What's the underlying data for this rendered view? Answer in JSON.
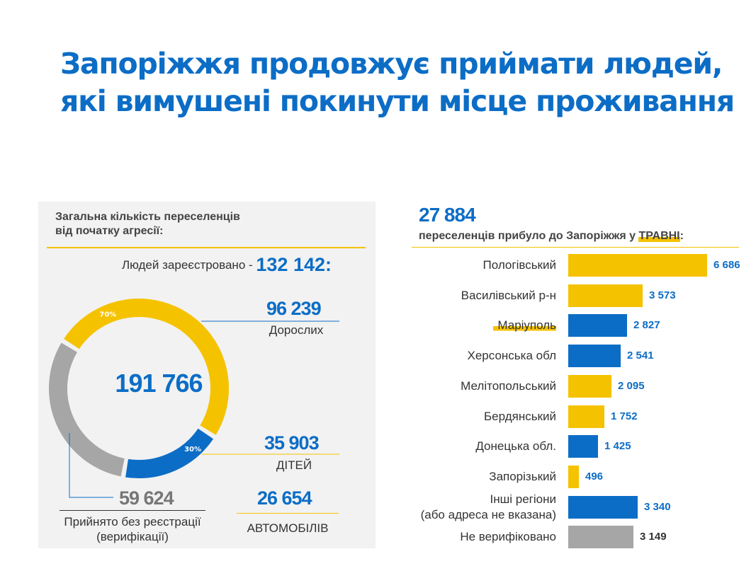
{
  "title": {
    "line1": "Запоріжжя продовжує приймати людей,",
    "line2": "які вимушені покинути місце проживання"
  },
  "left_panel": {
    "heading_line1": "Загальна кількість переселенців",
    "heading_line2": "від початку агресії:",
    "registered_label": "Людей зареєстровано - ",
    "registered_value": "132 142",
    "registered_suffix": ":",
    "total": "191 766",
    "adults_value": "96 239",
    "adults_label": "Дорослих",
    "children_value": "35 903",
    "children_label": "ДІТЕЙ",
    "unregistered_value": "59 624",
    "unregistered_label_line1": "Прийнято без реєстрації",
    "unregistered_label_line2": "(верифікації)",
    "cars_value": "26 654",
    "cars_label": "АВТОМОБІЛІВ",
    "colors": {
      "yellow": "#f5c200",
      "blue": "#0c6dc6",
      "grey": "#a6a6a6"
    }
  },
  "right_panel": {
    "total": "27 884",
    "subtitle_pre": "переселенців прибуло до Запоріжжя у ",
    "subtitle_hl": "ТРАВНІ",
    "subtitle_post": ":"
  },
  "chart_data": [
    {
      "type": "pie",
      "subtype": "donut",
      "labels": [
        "Дорослих",
        "ДІТЕЙ",
        "Прийнято без реєстрації (верифікації)"
      ],
      "values": [
        96239,
        35903,
        59624
      ],
      "colors": [
        "#f5c200",
        "#0c6dc6",
        "#a6a6a6"
      ],
      "percent_labels": [
        "70%",
        "30%"
      ]
    },
    {
      "type": "bar",
      "orientation": "horizontal",
      "categories": [
        "Пологівський",
        "Василівський р-н",
        "Маріуполь",
        "Херсонська обл",
        "Мелітопольський",
        "Бердянський",
        "Донецька обл.",
        "Запорізький",
        "Інші регіони (або адреса не вказана)",
        "Не верифіковано"
      ],
      "category_lines": [
        [
          "Пологівський"
        ],
        [
          "Василівський р-н"
        ],
        [
          "Маріуполь"
        ],
        [
          "Херсонська обл"
        ],
        [
          "Мелітопольський"
        ],
        [
          "Бердянський"
        ],
        [
          "Донецька обл."
        ],
        [
          "Запорізький"
        ],
        [
          "Інші регіони",
          "(або адреса не вказана)"
        ],
        [
          "Не верифіковано"
        ]
      ],
      "values": [
        6686,
        3573,
        2827,
        2541,
        2095,
        1752,
        1425,
        496,
        3340,
        3149
      ],
      "value_labels": [
        "6 686",
        "3 573",
        "2 827",
        "2 541",
        "2 095",
        "1 752",
        "1 425",
        "496",
        "3 340",
        "3 149"
      ],
      "colors": [
        "#f5c200",
        "#f5c200",
        "#0c6dc6",
        "#0c6dc6",
        "#f5c200",
        "#f5c200",
        "#0c6dc6",
        "#f5c200",
        "#0c6dc6",
        "#a6a6a6"
      ],
      "highlighted_category": "Маріуполь"
    }
  ]
}
